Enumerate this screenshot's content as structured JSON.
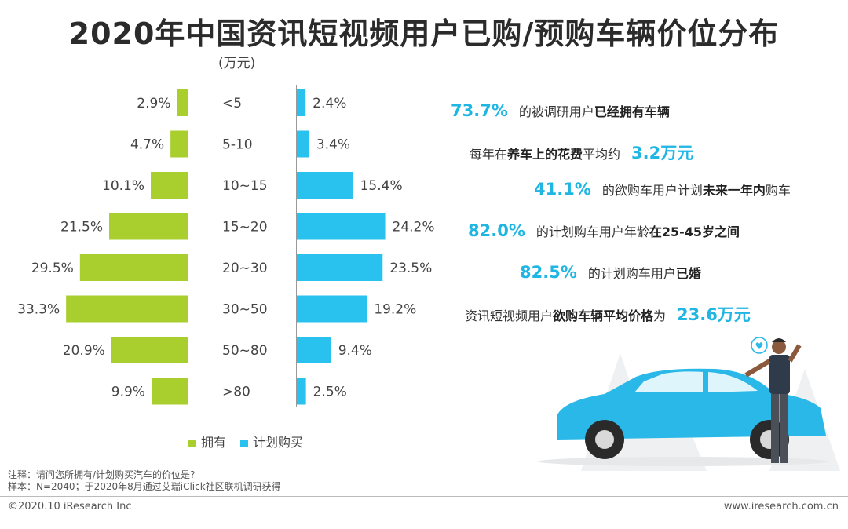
{
  "title": "2020年中国资讯短视频用户已购/预购车辆价位分布",
  "unit": "(万元)",
  "chart_data": {
    "type": "bar",
    "orientation": "horizontal-butterfly",
    "categories": [
      "<5",
      "5-10",
      "10~15",
      "15~20",
      "20~30",
      "30~50",
      "50~80",
      ">80"
    ],
    "series": [
      {
        "name": "拥有",
        "color": "#a8cf2d",
        "values": [
          2.9,
          4.7,
          10.1,
          21.5,
          29.5,
          33.3,
          20.9,
          9.9
        ],
        "labels": [
          "2.9%",
          "4.7%",
          "10.1%",
          "21.5%",
          "29.5%",
          "33.3%",
          "20.9%",
          "9.9%"
        ]
      },
      {
        "name": "计划购买",
        "color": "#29c2ef",
        "values": [
          2.4,
          3.4,
          15.4,
          24.2,
          23.5,
          19.2,
          9.4,
          2.5
        ],
        "labels": [
          "2.4%",
          "3.4%",
          "15.4%",
          "24.2%",
          "23.5%",
          "19.2%",
          "9.4%",
          "2.5%"
        ]
      }
    ],
    "ylabel": "(万元)"
  },
  "legend": {
    "owned": "拥有",
    "planned": "计划购买"
  },
  "stats": [
    {
      "big": "73.7%",
      "pre": "",
      "text": "的被调研用户",
      "bold": "已经拥有车辆",
      "post": ""
    },
    {
      "big": "",
      "pre": "每年在",
      "text": "",
      "bold": "养车上的花费",
      "post": "平均约",
      "big_after": "3.2万元"
    },
    {
      "big": "41.1%",
      "pre": "",
      "text": "的欲购车用户计划",
      "bold": "未来一年内",
      "post": "购车"
    },
    {
      "big": "82.0%",
      "pre": "",
      "text": "的计划购车用户年龄",
      "bold": "在25-45岁之间",
      "post": ""
    },
    {
      "big": "82.5%",
      "pre": "",
      "text": "的计划购车用户",
      "bold": "已婚",
      "post": ""
    },
    {
      "big": "",
      "pre": "资讯短视频用户",
      "text": "",
      "bold": "欲购车辆平均价格",
      "post": "为",
      "big_after": "23.6万元"
    }
  ],
  "notes": {
    "note": "注释：请问您所拥有/计划购买汽车的价位是?",
    "sample": "样本：N=2040；于2020年8月通过艾瑞iClick社区联机调研获得"
  },
  "footer": {
    "left": "©2020.10 iResearch Inc",
    "right": "www.iresearch.com.cn"
  },
  "colors": {
    "owned": "#a8cf2d",
    "planned": "#29c2ef",
    "accent": "#1fb6e3"
  }
}
